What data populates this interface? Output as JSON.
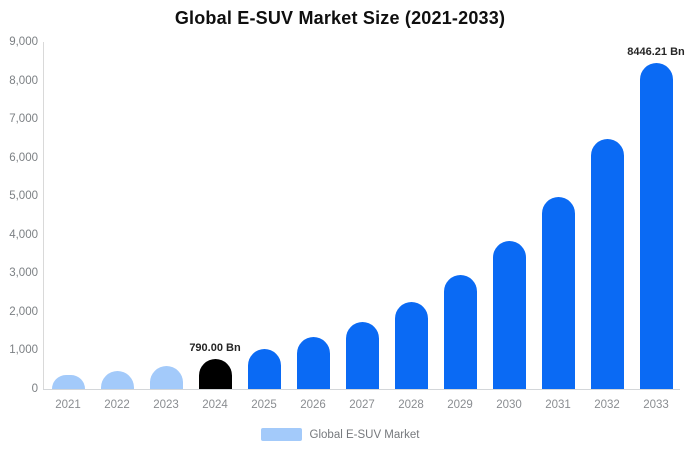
{
  "title": "Global E-SUV Market Size (2021-2033)",
  "legend": {
    "label": "Global E-SUV Market",
    "swatch_color": "#a3cafa"
  },
  "colors": {
    "historical_bar": "#a3cafa",
    "base_year_bar": "#000000",
    "forecast_bar": "#0a6af4",
    "axis_line": "#d9d9d9",
    "tick_text": "#7c8084",
    "title_text": "#0f0f0f"
  },
  "chart_data": {
    "type": "bar",
    "title": "Global E-SUV Market Size (2021-2033)",
    "xlabel": "",
    "ylabel": "",
    "unit": "Bn",
    "ylim": [
      0,
      9000
    ],
    "grid": false,
    "legend_position": "bottom",
    "categories": [
      "2021",
      "2022",
      "2023",
      "2024",
      "2025",
      "2026",
      "2027",
      "2028",
      "2029",
      "2030",
      "2031",
      "2032",
      "2033"
    ],
    "values": [
      359,
      467,
      607,
      790.0,
      1028,
      1337,
      1740,
      2264,
      2946,
      3833,
      4987,
      6489,
      8446.21
    ],
    "bar_colors": [
      "#a3cafa",
      "#a3cafa",
      "#a3cafa",
      "#000000",
      "#0a6af4",
      "#0a6af4",
      "#0a6af4",
      "#0a6af4",
      "#0a6af4",
      "#0a6af4",
      "#0a6af4",
      "#0a6af4",
      "#0a6af4"
    ],
    "y_ticks": [
      "0",
      "1,000",
      "2,000",
      "3,000",
      "4,000",
      "5,000",
      "6,000",
      "7,000",
      "8,000",
      "9,000"
    ],
    "data_labels": [
      {
        "index": 3,
        "text": "790.00 Bn"
      },
      {
        "index": 12,
        "text": "8446.21 Bn"
      }
    ],
    "series_name": "Global E-SUV Market"
  }
}
